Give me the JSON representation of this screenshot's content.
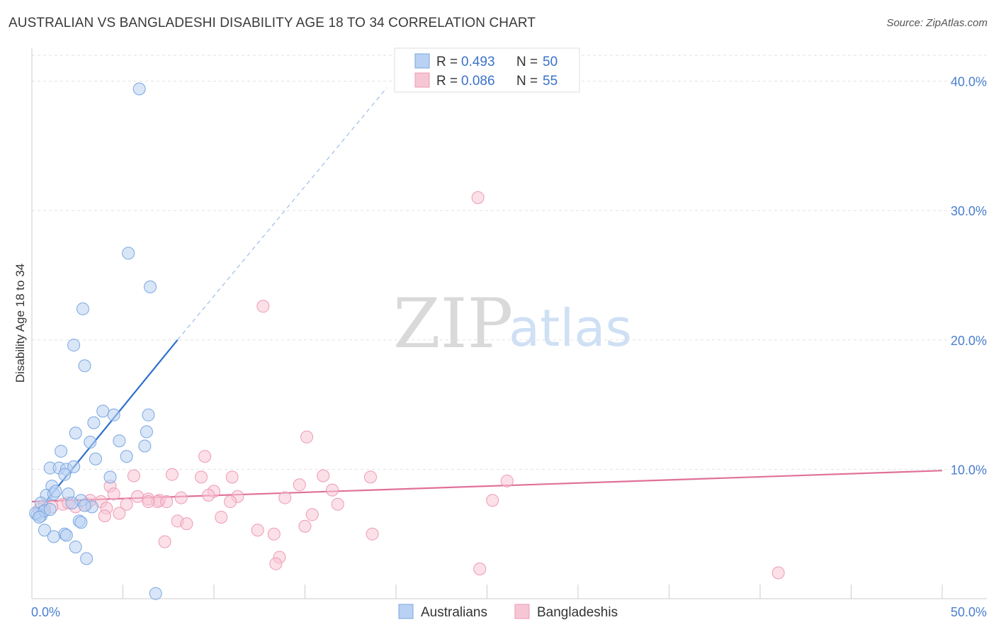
{
  "header": {
    "title": "AUSTRALIAN VS BANGLADESHI DISABILITY AGE 18 TO 34 CORRELATION CHART",
    "source": "Source: ZipAtlas.com"
  },
  "watermark": {
    "zip": "ZIP",
    "atlas": "atlas"
  },
  "colors": {
    "blue_fill": "#b9d1f2",
    "blue_stroke": "#7aa6e0",
    "blue_line": "#2f6fcc",
    "pink_fill": "#f7c6d5",
    "pink_stroke": "#ee9ab5",
    "pink_line": "#e0709a"
  },
  "legend": {
    "rows": [
      {
        "r_label": "R =",
        "r_value": "0.493",
        "n_label": "N =",
        "n_value": "50"
      },
      {
        "r_label": "R =",
        "r_value": "0.086",
        "n_label": "N =",
        "n_value": "55"
      }
    ]
  },
  "chart_data": {
    "type": "scatter",
    "title": "AUSTRALIAN VS BANGLADESHI DISABILITY AGE 18 TO 34 CORRELATION CHART",
    "xlabel": "",
    "ylabel": "Disability Age 18 to 34",
    "xlim": [
      0,
      50
    ],
    "ylim": [
      0,
      42
    ],
    "x_tick_labels": [
      "0.0%",
      "50.0%"
    ],
    "y_ticks": [
      10,
      20,
      30,
      40
    ],
    "y_tick_labels": [
      "10.0%",
      "20.0%",
      "30.0%",
      "40.0%"
    ],
    "grid": true,
    "legend_position": "top-center",
    "series": [
      {
        "name": "Australians",
        "r": 0.493,
        "n": 50,
        "trend": {
          "x": [
            0,
            8.0
          ],
          "y": [
            6.2,
            20.0
          ],
          "dash_to": [
            19.5,
            39.5
          ]
        },
        "points": [
          [
            5.9,
            39.4
          ],
          [
            5.3,
            26.7
          ],
          [
            6.5,
            24.1
          ],
          [
            2.8,
            22.4
          ],
          [
            2.3,
            19.6
          ],
          [
            2.9,
            18.0
          ],
          [
            3.9,
            14.5
          ],
          [
            4.5,
            14.2
          ],
          [
            6.4,
            14.2
          ],
          [
            3.4,
            13.6
          ],
          [
            2.4,
            12.8
          ],
          [
            6.3,
            12.9
          ],
          [
            3.2,
            12.1
          ],
          [
            4.8,
            12.2
          ],
          [
            6.2,
            11.8
          ],
          [
            1.6,
            11.4
          ],
          [
            5.2,
            11.0
          ],
          [
            3.5,
            10.8
          ],
          [
            1.0,
            10.1
          ],
          [
            1.5,
            10.1
          ],
          [
            1.9,
            10.0
          ],
          [
            2.3,
            10.2
          ],
          [
            1.8,
            9.6
          ],
          [
            4.3,
            9.4
          ],
          [
            1.1,
            8.7
          ],
          [
            0.8,
            8.0
          ],
          [
            1.2,
            8.1
          ],
          [
            2.0,
            8.1
          ],
          [
            1.3,
            8.3
          ],
          [
            2.7,
            7.6
          ],
          [
            0.5,
            7.4
          ],
          [
            2.2,
            7.4
          ],
          [
            3.3,
            7.1
          ],
          [
            0.6,
            6.7
          ],
          [
            0.3,
            6.5
          ],
          [
            0.5,
            6.4
          ],
          [
            0.2,
            6.6
          ],
          [
            0.7,
            6.8
          ],
          [
            2.6,
            6.0
          ],
          [
            2.7,
            5.9
          ],
          [
            0.7,
            5.3
          ],
          [
            1.8,
            5.0
          ],
          [
            1.9,
            4.9
          ],
          [
            1.2,
            4.8
          ],
          [
            2.4,
            4.0
          ],
          [
            3.0,
            3.1
          ],
          [
            6.8,
            0.4
          ],
          [
            0.4,
            6.3
          ],
          [
            1.0,
            6.9
          ],
          [
            2.9,
            7.2
          ]
        ]
      },
      {
        "name": "Bangladeshis",
        "r": 0.086,
        "n": 55,
        "trend": {
          "x": [
            0,
            50
          ],
          "y": [
            7.5,
            9.9
          ]
        },
        "points": [
          [
            24.5,
            31.0
          ],
          [
            12.7,
            22.6
          ],
          [
            15.1,
            12.5
          ],
          [
            9.5,
            11.0
          ],
          [
            7.7,
            9.6
          ],
          [
            9.3,
            9.4
          ],
          [
            11.0,
            9.4
          ],
          [
            16.0,
            9.5
          ],
          [
            18.6,
            9.4
          ],
          [
            5.6,
            9.5
          ],
          [
            26.1,
            9.1
          ],
          [
            14.7,
            8.8
          ],
          [
            4.3,
            8.7
          ],
          [
            10.0,
            8.3
          ],
          [
            16.5,
            8.4
          ],
          [
            4.5,
            8.1
          ],
          [
            5.8,
            7.9
          ],
          [
            6.4,
            7.7
          ],
          [
            7.0,
            7.6
          ],
          [
            8.2,
            7.8
          ],
          [
            9.7,
            8.0
          ],
          [
            11.3,
            7.9
          ],
          [
            3.2,
            7.6
          ],
          [
            3.8,
            7.5
          ],
          [
            5.2,
            7.3
          ],
          [
            6.9,
            7.5
          ],
          [
            7.4,
            7.5
          ],
          [
            10.9,
            7.5
          ],
          [
            13.9,
            7.8
          ],
          [
            25.3,
            7.6
          ],
          [
            1.7,
            7.3
          ],
          [
            2.4,
            7.1
          ],
          [
            2.0,
            7.4
          ],
          [
            3.0,
            7.3
          ],
          [
            4.1,
            7.0
          ],
          [
            0.7,
            7.2
          ],
          [
            1.1,
            7.1
          ],
          [
            0.4,
            6.9
          ],
          [
            4.8,
            6.6
          ],
          [
            10.4,
            6.3
          ],
          [
            16.8,
            7.3
          ],
          [
            15.4,
            6.5
          ],
          [
            4.0,
            6.4
          ],
          [
            8.0,
            6.0
          ],
          [
            8.5,
            5.8
          ],
          [
            12.4,
            5.3
          ],
          [
            13.3,
            5.0
          ],
          [
            15.0,
            5.6
          ],
          [
            18.7,
            5.0
          ],
          [
            7.3,
            4.4
          ],
          [
            13.6,
            3.2
          ],
          [
            13.4,
            2.7
          ],
          [
            24.6,
            2.3
          ],
          [
            41.0,
            2.0
          ],
          [
            6.4,
            7.5
          ]
        ]
      }
    ]
  }
}
